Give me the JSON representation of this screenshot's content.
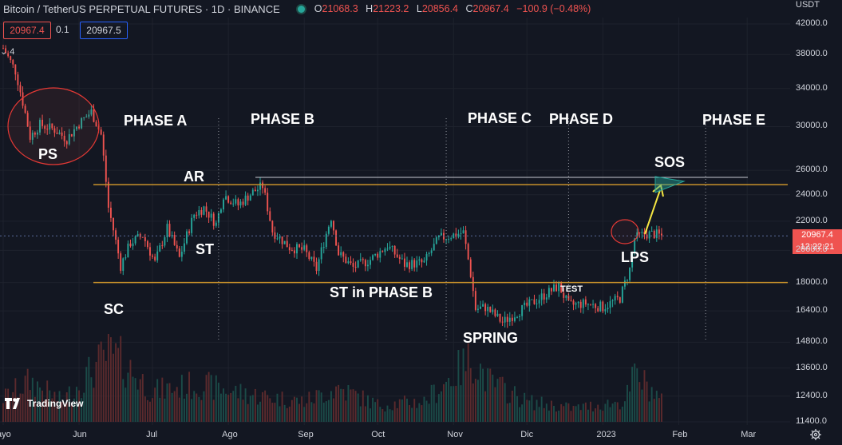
{
  "header": {
    "symbol": "Bitcoin / TetherUS PERPETUAL FUTURES · 1D · BINANCE",
    "open_label": "O",
    "open": "21068.3",
    "high_label": "H",
    "high": "21223.2",
    "low_label": "L",
    "low": "20856.4",
    "close_label": "C",
    "close": "20967.4",
    "change": "−100.9 (−0.48%)"
  },
  "price_boxes": {
    "sell": "20967.4",
    "spread": "0.1",
    "buy": "20967.5"
  },
  "collapse_label": "4",
  "currency": "USDT",
  "current_price": {
    "value": "20967.4",
    "countdown": "12:22:21"
  },
  "brand": "TradingView",
  "annotations": {
    "ps": "PS",
    "sc": "SC",
    "ar": "AR",
    "st": "ST",
    "st_phase_b": "ST in PHASE B",
    "spring": "SPRING",
    "test": "TEST",
    "lps": "LPS",
    "sos": "SOS",
    "phase_a": "PHASE A",
    "phase_b": "PHASE B",
    "phase_c": "PHASE C",
    "phase_d": "PHASE D",
    "phase_e": "PHASE E"
  },
  "colors": {
    "background": "#131722",
    "up": "#26a69a",
    "down": "#ef5350",
    "range_line": "#c8922b",
    "arrow": "#f5e642",
    "circle": "#e53935"
  },
  "chart_data": {
    "type": "candlestick",
    "title": "Bitcoin / TetherUS PERPETUAL FUTURES · 1D · BINANCE",
    "y_scale": "log",
    "y_ticks": [
      42000,
      38000,
      34000,
      30000,
      26000,
      24000,
      22000,
      20000,
      18000,
      16400,
      14800,
      13600,
      12400,
      11400
    ],
    "y_tick_labels": [
      "42000.0",
      "38000.0",
      "34000.0",
      "30000.0",
      "26000.0",
      "24000.0",
      "22000.0",
      "20000.0",
      "18000.0",
      "16400.0",
      "14800.0",
      "13600.0",
      "12400.0",
      "11400.0"
    ],
    "x_tick_labels": [
      "ayo",
      "Jun",
      "Jul",
      "Ago",
      "Sep",
      "Oct",
      "Nov",
      "Dic",
      "2023",
      "Feb",
      "Mar"
    ],
    "x_tick_dates": [
      "2022-05-01",
      "2022-06-01",
      "2022-07-01",
      "2022-08-01",
      "2022-09-01",
      "2022-10-01",
      "2022-11-01",
      "2022-12-01",
      "2023-01-01",
      "2023-02-01",
      "2023-03-01"
    ],
    "x_range": [
      "2022-05-01",
      "2023-03-20"
    ],
    "range_top": 24800,
    "range_bottom": 18000,
    "sos_level": 25400,
    "current_price_line": 20967.4,
    "phase_boundaries": [
      "2022-07-28",
      "2022-10-29",
      "2022-12-18",
      "2023-02-12"
    ],
    "price_path": [
      [
        "2022-05-01",
        38800
      ],
      [
        "2022-05-06",
        36000
      ],
      [
        "2022-05-12",
        29000
      ],
      [
        "2022-05-16",
        30200
      ],
      [
        "2022-05-22",
        29700
      ],
      [
        "2022-05-27",
        28800
      ],
      [
        "2022-06-01",
        30300
      ],
      [
        "2022-06-06",
        31500
      ],
      [
        "2022-06-10",
        29200
      ],
      [
        "2022-06-13",
        23000
      ],
      [
        "2022-06-18",
        19000
      ],
      [
        "2022-06-22",
        20500
      ],
      [
        "2022-06-27",
        21000
      ],
      [
        "2022-07-02",
        19200
      ],
      [
        "2022-07-07",
        21500
      ],
      [
        "2022-07-12",
        19500
      ],
      [
        "2022-07-18",
        22500
      ],
      [
        "2022-07-22",
        23000
      ],
      [
        "2022-07-27",
        21800
      ],
      [
        "2022-07-30",
        24000
      ],
      [
        "2022-08-05",
        23200
      ],
      [
        "2022-08-11",
        24200
      ],
      [
        "2022-08-15",
        24700
      ],
      [
        "2022-08-19",
        21300
      ],
      [
        "2022-08-26",
        20200
      ],
      [
        "2022-09-01",
        20000
      ],
      [
        "2022-09-06",
        18800
      ],
      [
        "2022-09-12",
        22300
      ],
      [
        "2022-09-15",
        19800
      ],
      [
        "2022-09-21",
        18900
      ],
      [
        "2022-09-28",
        19400
      ],
      [
        "2022-10-05",
        20300
      ],
      [
        "2022-10-12",
        19100
      ],
      [
        "2022-10-20",
        19200
      ],
      [
        "2022-10-26",
        20800
      ],
      [
        "2022-11-05",
        21200
      ],
      [
        "2022-11-08",
        18500
      ],
      [
        "2022-11-10",
        16500
      ],
      [
        "2022-11-14",
        16600
      ],
      [
        "2022-11-21",
        15800
      ],
      [
        "2022-11-28",
        16400
      ],
      [
        "2022-12-05",
        17000
      ],
      [
        "2022-12-14",
        17800
      ],
      [
        "2022-12-18",
        16700
      ],
      [
        "2022-12-25",
        16800
      ],
      [
        "2023-01-01",
        16600
      ],
      [
        "2023-01-08",
        17100
      ],
      [
        "2023-01-12",
        18800
      ],
      [
        "2023-01-14",
        20800
      ],
      [
        "2023-01-18",
        21100
      ],
      [
        "2023-01-22",
        21100
      ],
      [
        "2023-01-25",
        20967
      ]
    ],
    "volume_path": [
      [
        "2022-05-01",
        0.35
      ],
      [
        "2022-05-12",
        0.6
      ],
      [
        "2022-05-25",
        0.3
      ],
      [
        "2022-06-13",
        1.0
      ],
      [
        "2022-06-18",
        0.9
      ],
      [
        "2022-07-01",
        0.45
      ],
      [
        "2022-07-20",
        0.55
      ],
      [
        "2022-08-10",
        0.4
      ],
      [
        "2022-09-01",
        0.3
      ],
      [
        "2022-09-15",
        0.5
      ],
      [
        "2022-10-01",
        0.25
      ],
      [
        "2022-10-20",
        0.3
      ],
      [
        "2022-11-09",
        0.95
      ],
      [
        "2022-11-15",
        0.6
      ],
      [
        "2022-12-01",
        0.3
      ],
      [
        "2022-12-20",
        0.2
      ],
      [
        "2023-01-10",
        0.3
      ],
      [
        "2023-01-14",
        0.7
      ],
      [
        "2023-01-20",
        0.5
      ],
      [
        "2023-01-25",
        0.3
      ]
    ]
  }
}
